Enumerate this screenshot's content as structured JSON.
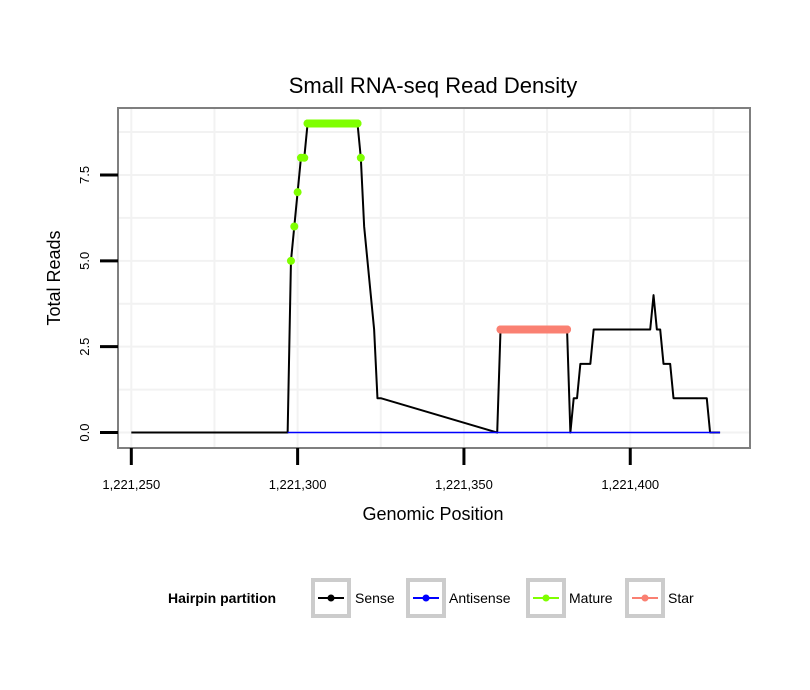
{
  "chart_data": {
    "type": "line",
    "title": "Small RNA-seq Read Density",
    "xlabel": "Genomic Position",
    "ylabel": "Total Reads",
    "xlim": [
      1221246,
      1221436
    ],
    "ylim": [
      -0.45,
      9.45
    ],
    "x_ticks": [
      1221250,
      1221300,
      1221350,
      1221400
    ],
    "x_tick_labels": [
      "1,221,250",
      "1,221,300",
      "1,221,350",
      "1,221,400"
    ],
    "y_ticks": [
      0,
      2.5,
      5,
      7.5
    ],
    "y_tick_labels": [
      "0.0",
      "2.5",
      "5.0",
      "7.5"
    ],
    "grid": true,
    "legend": {
      "title": "Hairpin partition",
      "position": "bottom",
      "items": [
        {
          "label": "Sense",
          "color": "#000000"
        },
        {
          "label": "Antisense",
          "color": "#0000ff"
        },
        {
          "label": "Mature",
          "color": "#7fff00"
        },
        {
          "label": "Star",
          "color": "#fa8072"
        }
      ]
    },
    "series": [
      {
        "name": "Sense",
        "color": "#000000",
        "x": [
          1221250,
          1221297,
          1221298,
          1221299,
          1221300,
          1221301,
          1221302,
          1221303,
          1221318,
          1221319,
          1221320,
          1221321,
          1221322,
          1221323,
          1221324,
          1221325,
          1221360,
          1221361,
          1221381,
          1221382,
          1221383,
          1221384,
          1221385,
          1221386,
          1221388,
          1221389,
          1221390,
          1221406,
          1221407,
          1221408,
          1221409,
          1221410,
          1221412,
          1221413,
          1221423,
          1221424,
          1221427
        ],
        "y": [
          0,
          0,
          5,
          6,
          7,
          8,
          8,
          9,
          9,
          8,
          6,
          5,
          4,
          3,
          1,
          1,
          0,
          3,
          3,
          0,
          1,
          1,
          2,
          2,
          2,
          3,
          3,
          3,
          4,
          3,
          3,
          2,
          2,
          1,
          1,
          0,
          0
        ]
      },
      {
        "name": "Antisense",
        "color": "#0000ff",
        "x": [
          1221297,
          1221427
        ],
        "y": [
          0,
          0
        ]
      },
      {
        "name": "Mature",
        "color": "#7fff00",
        "x": [
          1221298,
          1221299,
          1221300,
          1221301,
          1221302,
          1221303,
          1221304,
          1221305,
          1221306,
          1221307,
          1221308,
          1221309,
          1221310,
          1221311,
          1221312,
          1221313,
          1221314,
          1221315,
          1221316,
          1221317,
          1221318,
          1221319
        ],
        "y": [
          5,
          6,
          7,
          8,
          8,
          9,
          9,
          9,
          9,
          9,
          9,
          9,
          9,
          9,
          9,
          9,
          9,
          9,
          9,
          9,
          9,
          8
        ]
      },
      {
        "name": "Star",
        "color": "#fa8072",
        "x": [
          1221361,
          1221362,
          1221363,
          1221364,
          1221365,
          1221366,
          1221367,
          1221368,
          1221369,
          1221370,
          1221371,
          1221372,
          1221373,
          1221374,
          1221375,
          1221376,
          1221377,
          1221378,
          1221379,
          1221380,
          1221381
        ],
        "y": [
          3,
          3,
          3,
          3,
          3,
          3,
          3,
          3,
          3,
          3,
          3,
          3,
          3,
          3,
          3,
          3,
          3,
          3,
          3,
          3,
          3
        ]
      }
    ]
  }
}
